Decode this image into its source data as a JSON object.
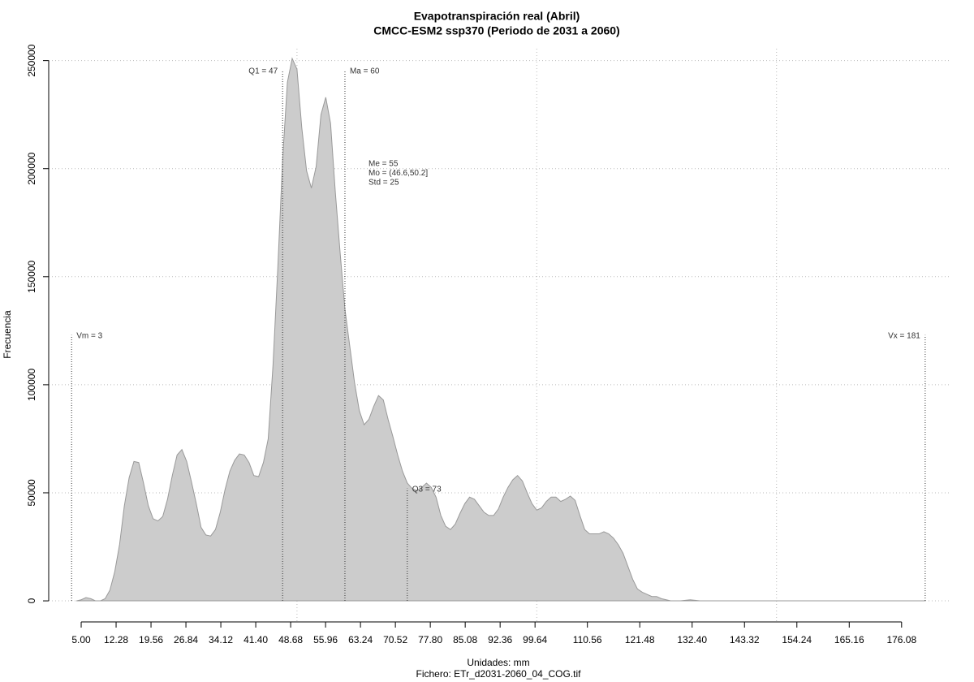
{
  "chart_data": {
    "type": "area",
    "title": [
      "Evapotranspiración real (Abril)",
      "CMCC-ESM2 ssp370 (Periodo de 2031 a 2060)"
    ],
    "xlabel": "Unidades: mm",
    "caption": "Fichero: ETr_d2031-2060_04_COG.tif",
    "ylabel": "Frecuencia",
    "color": "#cccccc",
    "x": [
      4,
      5,
      6,
      7,
      8,
      9,
      10,
      11,
      12,
      13,
      14,
      15,
      16,
      17,
      18,
      19,
      20,
      21,
      22,
      23,
      24,
      25,
      26,
      27,
      28,
      29,
      30,
      31,
      32,
      33,
      34,
      35,
      36,
      37,
      38,
      39,
      40,
      41,
      42,
      43,
      44,
      45,
      46,
      47,
      48,
      49,
      50,
      51,
      52,
      53,
      54,
      55,
      56,
      57,
      58,
      59,
      60,
      61,
      62,
      63,
      64,
      65,
      66,
      67,
      68,
      69,
      70,
      71,
      72,
      73,
      74,
      75,
      76,
      77,
      78,
      79,
      80,
      81,
      82,
      83,
      84,
      85,
      86,
      87,
      88,
      89,
      90,
      91,
      92,
      93,
      94,
      95,
      96,
      97,
      98,
      99,
      100,
      101,
      102,
      103,
      104,
      105,
      106,
      107,
      108,
      109,
      110,
      111,
      112,
      113,
      114,
      115,
      116,
      117,
      118,
      119,
      120,
      121,
      122,
      123,
      124,
      125,
      126,
      127,
      128,
      130,
      132,
      134,
      181
    ],
    "values": [
      0,
      500,
      1500,
      1000,
      0,
      0,
      1000,
      5000,
      13500,
      26000,
      44000,
      57000,
      64500,
      64000,
      54500,
      44000,
      38000,
      37000,
      39000,
      47000,
      58000,
      67500,
      70000,
      64500,
      55000,
      45000,
      34000,
      30500,
      30000,
      33000,
      41000,
      51500,
      60000,
      65000,
      68000,
      67500,
      64000,
      58000,
      57500,
      64000,
      75000,
      109000,
      154000,
      204000,
      240000,
      251000,
      246000,
      219000,
      199000,
      191000,
      201000,
      225000,
      233000,
      221000,
      189000,
      161000,
      135000,
      118000,
      101000,
      88000,
      81500,
      84000,
      90000,
      95000,
      93000,
      84000,
      76000,
      67500,
      60000,
      54500,
      52000,
      51000,
      52500,
      54500,
      52500,
      48000,
      39500,
      34500,
      33000,
      35500,
      40500,
      45000,
      48000,
      47000,
      44000,
      41000,
      39500,
      39500,
      42500,
      48000,
      52500,
      56000,
      58000,
      55500,
      50000,
      45000,
      42000,
      43000,
      46000,
      48000,
      48000,
      46000,
      47000,
      48500,
      46500,
      39500,
      33000,
      31000,
      31000,
      31000,
      32000,
      31000,
      29000,
      26000,
      22000,
      16000,
      10000,
      5500,
      4000,
      3000,
      2000,
      2000,
      1000,
      500,
      0,
      0,
      500,
      0,
      0
    ],
    "xlim": [
      -0.42,
      186.1
    ],
    "ylim": [
      -10500,
      255500
    ],
    "xticks": [
      {
        "value": 5,
        "label": "5.00"
      },
      12.28,
      19.56,
      26.84,
      34.12,
      {
        "value": 41.4,
        "label": "41.40"
      },
      48.68,
      55.96,
      63.24,
      70.52,
      {
        "value": 77.8,
        "label": "77.80"
      },
      85.08,
      92.36,
      99.64,
      110.56,
      121.48,
      {
        "value": 132.4,
        "label": "132.40"
      },
      143.32,
      154.24,
      165.16,
      176.08
    ],
    "yticks": [
      0,
      50000,
      100000,
      150000,
      200000,
      250000
    ],
    "xgrid": [
      50,
      100,
      150
    ],
    "grid": true,
    "annotations": [
      {
        "label": "Vm = 3",
        "x": 3,
        "y": 123000
      },
      {
        "label": "Q1 = 47",
        "x": 47,
        "y": 245500
      },
      {
        "label": "Ma = 60",
        "x": 60,
        "y": 245500
      },
      {
        "label": "Q3 = 73",
        "x": 73,
        "y": 52000
      },
      {
        "label": "Vx = 181",
        "x": 181,
        "y": 123000
      }
    ],
    "stats": [
      "Me = 55",
      "Mo = (46.6,50.2]",
      "Std = 25"
    ]
  }
}
